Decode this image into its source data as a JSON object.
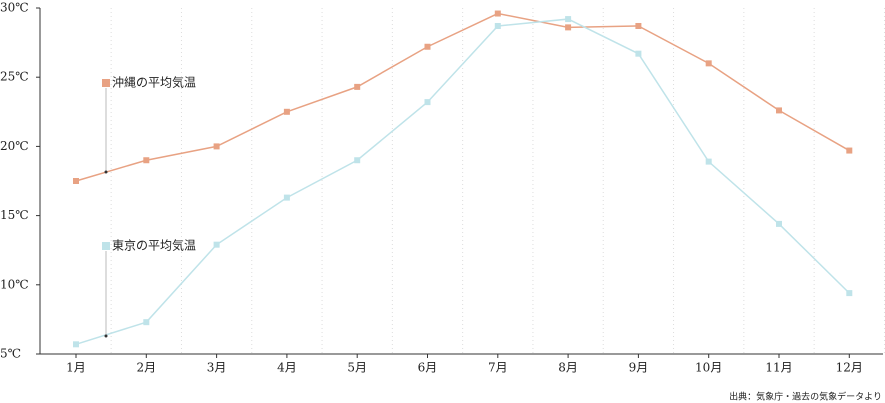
{
  "chart_data": {
    "type": "line",
    "source": "出典：気象庁・過去の気象データより",
    "categories": [
      "1月",
      "2月",
      "3月",
      "4月",
      "5月",
      "6月",
      "7月",
      "8月",
      "9月",
      "10月",
      "11月",
      "12月"
    ],
    "series": [
      {
        "name": "沖縄の平均気温",
        "color": "#e8a283",
        "values": [
          17.5,
          19.0,
          20.0,
          22.5,
          24.3,
          27.2,
          29.6,
          28.6,
          28.7,
          26.0,
          22.6,
          19.7
        ]
      },
      {
        "name": "東京の平均気温",
        "color": "#bfe3e9",
        "values": [
          5.7,
          7.3,
          12.9,
          16.3,
          19.0,
          23.2,
          28.7,
          29.2,
          26.7,
          18.9,
          14.4,
          9.4
        ]
      }
    ],
    "ylim": [
      5,
      30
    ],
    "yticks": [
      {
        "value": 5,
        "label": "5℃"
      },
      {
        "value": 10,
        "label": "10℃"
      },
      {
        "value": 15,
        "label": "15℃"
      },
      {
        "value": 20,
        "label": "20℃"
      },
      {
        "value": 25,
        "label": "25℃"
      },
      {
        "value": 30,
        "label": "30℃"
      }
    ],
    "grid": true
  }
}
